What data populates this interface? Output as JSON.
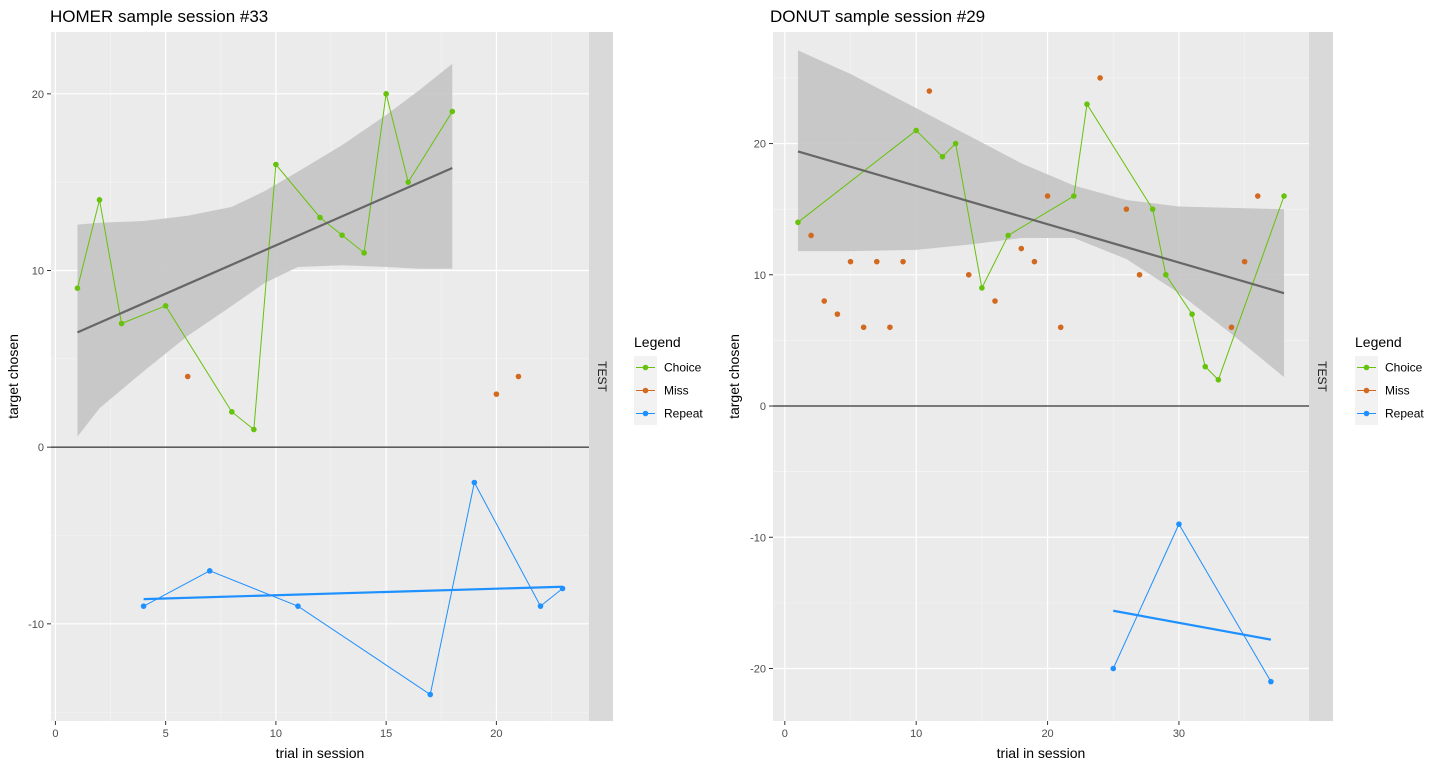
{
  "chart_data": [
    {
      "type": "scatter",
      "title": "HOMER sample session #33",
      "xlabel": "trial in session",
      "ylabel": "target chosen",
      "facet_label": "TEST",
      "xlim": [
        -0.2,
        24.2
      ],
      "ylim": [
        -15.5,
        23.5
      ],
      "x_ticks": [
        0,
        5,
        10,
        15,
        20
      ],
      "y_ticks": [
        -10,
        0,
        10,
        20
      ],
      "y_tick_labels": [
        "-10",
        "0",
        "10",
        "20"
      ],
      "hline": 0,
      "legend": {
        "title": "Legend",
        "entries": [
          "Choice",
          "Miss",
          "Repeat"
        ]
      },
      "colors": {
        "Choice": "#66c20a",
        "Miss": "#d2691e",
        "Repeat": "#1e90ff",
        "fit": "#666666",
        "ribbon": "#c4c4c4"
      },
      "series": [
        {
          "name": "Choice",
          "connected": true,
          "points": [
            [
              1,
              9
            ],
            [
              2,
              14
            ],
            [
              3,
              7
            ],
            [
              5,
              8
            ],
            [
              8,
              2
            ],
            [
              9,
              1
            ],
            [
              10,
              16
            ],
            [
              12,
              13
            ],
            [
              13,
              12
            ],
            [
              14,
              11
            ],
            [
              15,
              20
            ],
            [
              16,
              15
            ],
            [
              18,
              19
            ]
          ]
        },
        {
          "name": "Miss",
          "connected": false,
          "points": [
            [
              6,
              4
            ],
            [
              20,
              3
            ],
            [
              21,
              4
            ]
          ]
        },
        {
          "name": "Repeat",
          "connected": true,
          "points": [
            [
              4,
              -9
            ],
            [
              7,
              -7
            ],
            [
              11,
              -9
            ],
            [
              17,
              -14
            ],
            [
              19,
              -2
            ],
            [
              22,
              -9
            ],
            [
              23,
              -8
            ]
          ]
        }
      ],
      "fits": [
        {
          "series": "Choice",
          "x": [
            1,
            18
          ],
          "y": [
            6.5,
            15.8
          ],
          "ribbon_x": [
            1,
            2,
            4,
            6,
            8,
            9.5,
            11,
            13,
            15,
            16.5,
            18
          ],
          "ribbon_low": [
            0.6,
            2.2,
            4.3,
            6.3,
            8.0,
            9.3,
            10.2,
            10.3,
            10.2,
            10.1,
            10.1
          ],
          "ribbon_high": [
            12.6,
            12.7,
            12.8,
            13.1,
            13.6,
            14.5,
            15.6,
            17.1,
            18.8,
            20.2,
            21.7
          ]
        },
        {
          "series": "Repeat",
          "x": [
            4,
            23
          ],
          "y": [
            -8.6,
            -7.9
          ]
        }
      ]
    },
    {
      "type": "scatter",
      "title": "DONUT sample session #29",
      "xlabel": "trial in session",
      "ylabel": "target chosen",
      "facet_label": "TEST",
      "xlim": [
        -0.9,
        39.9
      ],
      "ylim": [
        -24,
        28.5
      ],
      "x_ticks": [
        0,
        10,
        20,
        30
      ],
      "y_ticks": [
        -20,
        -10,
        0,
        10,
        20
      ],
      "y_tick_labels": [
        "-20",
        "-10",
        "0",
        "10",
        "20"
      ],
      "hline": 0,
      "legend": {
        "title": "Legend",
        "entries": [
          "Choice",
          "Miss",
          "Repeat"
        ]
      },
      "colors": {
        "Choice": "#66c20a",
        "Miss": "#d2691e",
        "Repeat": "#1e90ff",
        "fit": "#666666",
        "ribbon": "#c4c4c4"
      },
      "series": [
        {
          "name": "Choice",
          "connected": true,
          "points": [
            [
              1,
              14
            ],
            [
              10,
              21
            ],
            [
              12,
              19
            ],
            [
              13,
              20
            ],
            [
              15,
              9
            ],
            [
              17,
              13
            ],
            [
              22,
              16
            ],
            [
              23,
              23
            ],
            [
              28,
              15
            ],
            [
              29,
              10
            ],
            [
              31,
              7
            ],
            [
              32,
              3
            ],
            [
              33,
              2
            ],
            [
              38,
              16
            ]
          ]
        },
        {
          "name": "Miss",
          "connected": false,
          "points": [
            [
              2,
              13
            ],
            [
              3,
              8
            ],
            [
              4,
              7
            ],
            [
              5,
              11
            ],
            [
              6,
              6
            ],
            [
              7,
              11
            ],
            [
              8,
              6
            ],
            [
              9,
              11
            ],
            [
              11,
              24
            ],
            [
              14,
              10
            ],
            [
              16,
              8
            ],
            [
              18,
              12
            ],
            [
              19,
              11
            ],
            [
              20,
              16
            ],
            [
              21,
              6
            ],
            [
              24,
              25
            ],
            [
              26,
              15
            ],
            [
              27,
              10
            ],
            [
              34,
              6
            ],
            [
              35,
              11
            ],
            [
              36,
              16
            ]
          ]
        },
        {
          "name": "Repeat",
          "connected": true,
          "points": [
            [
              25,
              -20
            ],
            [
              30,
              -9
            ],
            [
              37,
              -21
            ]
          ]
        }
      ],
      "fits": [
        {
          "series": "Choice",
          "x": [
            1,
            38
          ],
          "y": [
            19.4,
            8.6
          ],
          "ribbon_x": [
            1,
            5,
            10,
            14,
            18,
            22,
            26,
            30,
            34,
            38
          ],
          "ribbon_low": [
            11.8,
            11.8,
            11.9,
            12.3,
            12.8,
            12.8,
            11.2,
            8.6,
            5.5,
            2.2
          ],
          "ribbon_high": [
            27.1,
            25.3,
            22.7,
            20.6,
            18.5,
            16.8,
            15.7,
            15.2,
            15.1,
            15.0
          ]
        },
        {
          "series": "Repeat",
          "x": [
            25,
            37
          ],
          "y": [
            -15.6,
            -17.8
          ]
        }
      ]
    }
  ]
}
